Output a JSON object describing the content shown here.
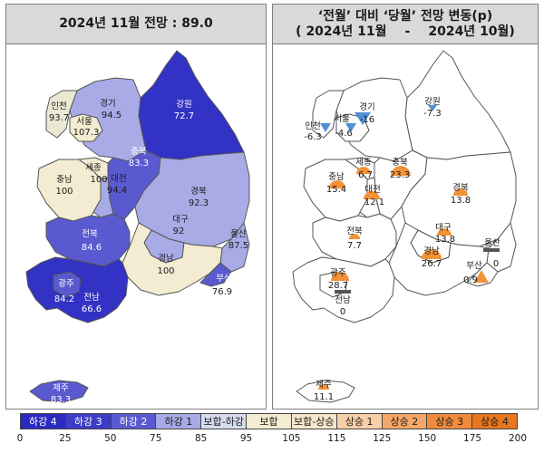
{
  "left_panel": {
    "title": "2024년 11월 전망 : 89.0",
    "regions": [
      {
        "name": "인천",
        "value": "93.7",
        "color": "#eae9d4"
      },
      {
        "name": "서울",
        "value": "107.3",
        "color": "#f3ecd2"
      },
      {
        "name": "경기",
        "value": "94.5",
        "color": "#a8abe6"
      },
      {
        "name": "강원",
        "value": "72.7",
        "color": "#3232c4"
      },
      {
        "name": "세종",
        "value": "100",
        "color": "#f3ecd2"
      },
      {
        "name": "충남",
        "value": "100",
        "color": "#f3ecd2"
      },
      {
        "name": "충북",
        "value": "83.3",
        "color": "#5a5ad0"
      },
      {
        "name": "대전",
        "value": "94.4",
        "color": "#a8abe6"
      },
      {
        "name": "경북",
        "value": "92.3",
        "color": "#a8abe6"
      },
      {
        "name": "대구",
        "value": "92",
        "color": "#a8abe6"
      },
      {
        "name": "울산",
        "value": "87.5",
        "color": "#a8abe6"
      },
      {
        "name": "전북",
        "value": "84.6",
        "color": "#5a5ad0"
      },
      {
        "name": "경남",
        "value": "100",
        "color": "#f3ecd2"
      },
      {
        "name": "부산",
        "value": "76.9",
        "color": "#5a5ad0"
      },
      {
        "name": "광주",
        "value": "84.2",
        "color": "#5a5ad0"
      },
      {
        "name": "전남",
        "value": "66.6",
        "color": "#3232c4"
      },
      {
        "name": "제주",
        "value": "83.3",
        "color": "#5a5ad0"
      }
    ]
  },
  "right_panel": {
    "title_line1": "‘전월’ 대비 ‘당월’ 전망 변동(p)",
    "title_line2_left": "( 2024년 11월",
    "title_line2_sep": "-",
    "title_line2_right": "2024년 10월)",
    "changes": [
      {
        "name": "인천",
        "value": "-6.3",
        "direction": "down"
      },
      {
        "name": "서울",
        "value": "-4.6",
        "direction": "down"
      },
      {
        "name": "경기",
        "value": "-16",
        "direction": "down"
      },
      {
        "name": "강원",
        "value": "-7.3",
        "direction": "down"
      },
      {
        "name": "세종",
        "value": "6.7",
        "direction": "up"
      },
      {
        "name": "충남",
        "value": "15.4",
        "direction": "up"
      },
      {
        "name": "충북",
        "value": "23.3",
        "direction": "up"
      },
      {
        "name": "대전",
        "value": "12.1",
        "direction": "up"
      },
      {
        "name": "경북",
        "value": "13.8",
        "direction": "up"
      },
      {
        "name": "대구",
        "value": "13.8",
        "direction": "up"
      },
      {
        "name": "전북",
        "value": "7.7",
        "direction": "up"
      },
      {
        "name": "경남",
        "value": "26.7",
        "direction": "up"
      },
      {
        "name": "울산",
        "value": "0",
        "direction": "flat"
      },
      {
        "name": "부산",
        "value": "0.9",
        "direction": "up"
      },
      {
        "name": "광주",
        "value": "28.7",
        "direction": "up"
      },
      {
        "name": "전남",
        "value": "0",
        "direction": "flat"
      },
      {
        "name": "제주",
        "value": "11.1",
        "direction": "up"
      }
    ]
  },
  "legend": {
    "items": [
      {
        "label": "하강 4",
        "color": "#2a2ac2",
        "text_color": "#ffffff"
      },
      {
        "label": "하강 3",
        "color": "#3c3cc8",
        "text_color": "#ffffff"
      },
      {
        "label": "하강 2",
        "color": "#5a5ad0",
        "text_color": "#ffffff"
      },
      {
        "label": "하강 1",
        "color": "#a8abe6",
        "text_color": "#1a1a1a"
      },
      {
        "label": "보합-하강",
        "color": "#d8dcef",
        "text_color": "#1a1a1a"
      },
      {
        "label": "보합",
        "color": "#f3ecd2",
        "text_color": "#1a1a1a"
      },
      {
        "label": "보합-상승",
        "color": "#f7e5cc",
        "text_color": "#1a1a1a"
      },
      {
        "label": "상승 1",
        "color": "#f8cfa7",
        "text_color": "#1a1a1a"
      },
      {
        "label": "상승 2",
        "color": "#f5a767",
        "text_color": "#1a1a1a"
      },
      {
        "label": "상승 3",
        "color": "#f18a3c",
        "text_color": "#1a1a1a"
      },
      {
        "label": "상승 4",
        "color": "#e8761f",
        "text_color": "#1a1a1a"
      }
    ],
    "ticks": [
      "0",
      "25",
      "50",
      "75",
      "85",
      "95",
      "105",
      "115",
      "125",
      "150",
      "175",
      "200"
    ]
  },
  "colors": {
    "up_marker": "#f39237",
    "down_marker": "#4f8fd6",
    "flat_marker": "#555555",
    "border": "#555555"
  }
}
